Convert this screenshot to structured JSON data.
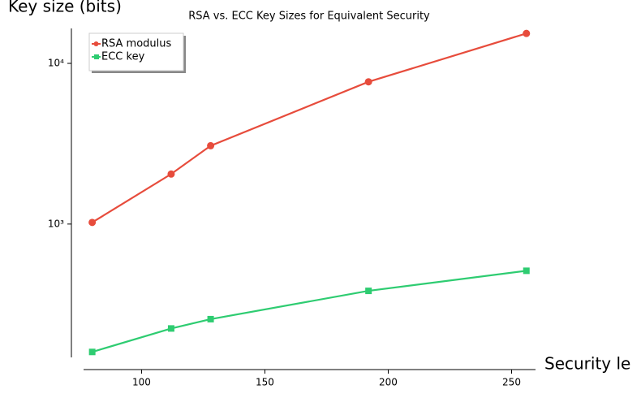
{
  "chart_data": {
    "type": "line",
    "title": "RSA vs. ECC Key Sizes for Equivalent Security",
    "x_label": "Security le",
    "y_label": "Key size (bits)",
    "x": [
      80,
      112,
      128,
      192,
      256
    ],
    "series": [
      {
        "name": "RSA modulus",
        "color": "#e74c3c",
        "marker": "circle",
        "values": [
          1024,
          2048,
          3072,
          7680,
          15360
        ]
      },
      {
        "name": "ECC key",
        "color": "#2ecc71",
        "marker": "square",
        "values": [
          160,
          224,
          256,
          384,
          512
        ]
      }
    ],
    "xlim": [
      76.5,
      259.7
    ],
    "xticks": [
      100,
      150,
      200,
      250
    ],
    "ylim": [
      148,
      16500
    ],
    "yticks": [
      {
        "value": 1000,
        "label": "10³"
      },
      {
        "value": 10000,
        "label": "10⁴"
      }
    ],
    "log_y": true,
    "legend": "upper left"
  }
}
